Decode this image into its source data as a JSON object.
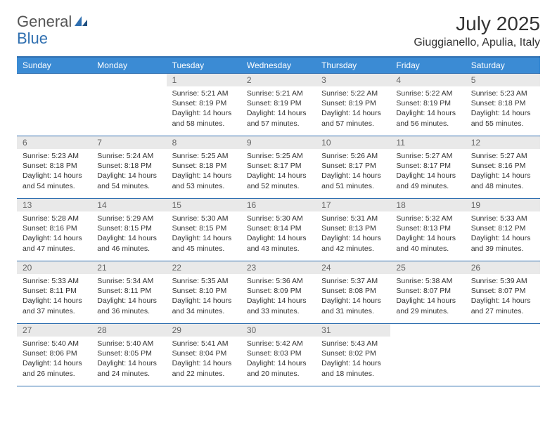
{
  "logo": {
    "text1": "General",
    "text2": "Blue"
  },
  "title": "July 2025",
  "location": "Giuggianello, Apulia, Italy",
  "colors": {
    "header_bg": "#3b8bd4",
    "header_text": "#ffffff",
    "border": "#2f6fb0",
    "daynum_bg": "#e9e9e9",
    "daynum_text": "#666666",
    "body_text": "#333333",
    "background": "#ffffff",
    "logo_gray": "#555555",
    "logo_blue": "#2f6fb0"
  },
  "day_headers": [
    "Sunday",
    "Monday",
    "Tuesday",
    "Wednesday",
    "Thursday",
    "Friday",
    "Saturday"
  ],
  "weeks": [
    [
      {
        "day": "",
        "sunrise": "",
        "sunset": "",
        "daylight": ""
      },
      {
        "day": "",
        "sunrise": "",
        "sunset": "",
        "daylight": ""
      },
      {
        "day": "1",
        "sunrise": "Sunrise: 5:21 AM",
        "sunset": "Sunset: 8:19 PM",
        "daylight": "Daylight: 14 hours and 58 minutes."
      },
      {
        "day": "2",
        "sunrise": "Sunrise: 5:21 AM",
        "sunset": "Sunset: 8:19 PM",
        "daylight": "Daylight: 14 hours and 57 minutes."
      },
      {
        "day": "3",
        "sunrise": "Sunrise: 5:22 AM",
        "sunset": "Sunset: 8:19 PM",
        "daylight": "Daylight: 14 hours and 57 minutes."
      },
      {
        "day": "4",
        "sunrise": "Sunrise: 5:22 AM",
        "sunset": "Sunset: 8:19 PM",
        "daylight": "Daylight: 14 hours and 56 minutes."
      },
      {
        "day": "5",
        "sunrise": "Sunrise: 5:23 AM",
        "sunset": "Sunset: 8:18 PM",
        "daylight": "Daylight: 14 hours and 55 minutes."
      }
    ],
    [
      {
        "day": "6",
        "sunrise": "Sunrise: 5:23 AM",
        "sunset": "Sunset: 8:18 PM",
        "daylight": "Daylight: 14 hours and 54 minutes."
      },
      {
        "day": "7",
        "sunrise": "Sunrise: 5:24 AM",
        "sunset": "Sunset: 8:18 PM",
        "daylight": "Daylight: 14 hours and 54 minutes."
      },
      {
        "day": "8",
        "sunrise": "Sunrise: 5:25 AM",
        "sunset": "Sunset: 8:18 PM",
        "daylight": "Daylight: 14 hours and 53 minutes."
      },
      {
        "day": "9",
        "sunrise": "Sunrise: 5:25 AM",
        "sunset": "Sunset: 8:17 PM",
        "daylight": "Daylight: 14 hours and 52 minutes."
      },
      {
        "day": "10",
        "sunrise": "Sunrise: 5:26 AM",
        "sunset": "Sunset: 8:17 PM",
        "daylight": "Daylight: 14 hours and 51 minutes."
      },
      {
        "day": "11",
        "sunrise": "Sunrise: 5:27 AM",
        "sunset": "Sunset: 8:17 PM",
        "daylight": "Daylight: 14 hours and 49 minutes."
      },
      {
        "day": "12",
        "sunrise": "Sunrise: 5:27 AM",
        "sunset": "Sunset: 8:16 PM",
        "daylight": "Daylight: 14 hours and 48 minutes."
      }
    ],
    [
      {
        "day": "13",
        "sunrise": "Sunrise: 5:28 AM",
        "sunset": "Sunset: 8:16 PM",
        "daylight": "Daylight: 14 hours and 47 minutes."
      },
      {
        "day": "14",
        "sunrise": "Sunrise: 5:29 AM",
        "sunset": "Sunset: 8:15 PM",
        "daylight": "Daylight: 14 hours and 46 minutes."
      },
      {
        "day": "15",
        "sunrise": "Sunrise: 5:30 AM",
        "sunset": "Sunset: 8:15 PM",
        "daylight": "Daylight: 14 hours and 45 minutes."
      },
      {
        "day": "16",
        "sunrise": "Sunrise: 5:30 AM",
        "sunset": "Sunset: 8:14 PM",
        "daylight": "Daylight: 14 hours and 43 minutes."
      },
      {
        "day": "17",
        "sunrise": "Sunrise: 5:31 AM",
        "sunset": "Sunset: 8:13 PM",
        "daylight": "Daylight: 14 hours and 42 minutes."
      },
      {
        "day": "18",
        "sunrise": "Sunrise: 5:32 AM",
        "sunset": "Sunset: 8:13 PM",
        "daylight": "Daylight: 14 hours and 40 minutes."
      },
      {
        "day": "19",
        "sunrise": "Sunrise: 5:33 AM",
        "sunset": "Sunset: 8:12 PM",
        "daylight": "Daylight: 14 hours and 39 minutes."
      }
    ],
    [
      {
        "day": "20",
        "sunrise": "Sunrise: 5:33 AM",
        "sunset": "Sunset: 8:11 PM",
        "daylight": "Daylight: 14 hours and 37 minutes."
      },
      {
        "day": "21",
        "sunrise": "Sunrise: 5:34 AM",
        "sunset": "Sunset: 8:11 PM",
        "daylight": "Daylight: 14 hours and 36 minutes."
      },
      {
        "day": "22",
        "sunrise": "Sunrise: 5:35 AM",
        "sunset": "Sunset: 8:10 PM",
        "daylight": "Daylight: 14 hours and 34 minutes."
      },
      {
        "day": "23",
        "sunrise": "Sunrise: 5:36 AM",
        "sunset": "Sunset: 8:09 PM",
        "daylight": "Daylight: 14 hours and 33 minutes."
      },
      {
        "day": "24",
        "sunrise": "Sunrise: 5:37 AM",
        "sunset": "Sunset: 8:08 PM",
        "daylight": "Daylight: 14 hours and 31 minutes."
      },
      {
        "day": "25",
        "sunrise": "Sunrise: 5:38 AM",
        "sunset": "Sunset: 8:07 PM",
        "daylight": "Daylight: 14 hours and 29 minutes."
      },
      {
        "day": "26",
        "sunrise": "Sunrise: 5:39 AM",
        "sunset": "Sunset: 8:07 PM",
        "daylight": "Daylight: 14 hours and 27 minutes."
      }
    ],
    [
      {
        "day": "27",
        "sunrise": "Sunrise: 5:40 AM",
        "sunset": "Sunset: 8:06 PM",
        "daylight": "Daylight: 14 hours and 26 minutes."
      },
      {
        "day": "28",
        "sunrise": "Sunrise: 5:40 AM",
        "sunset": "Sunset: 8:05 PM",
        "daylight": "Daylight: 14 hours and 24 minutes."
      },
      {
        "day": "29",
        "sunrise": "Sunrise: 5:41 AM",
        "sunset": "Sunset: 8:04 PM",
        "daylight": "Daylight: 14 hours and 22 minutes."
      },
      {
        "day": "30",
        "sunrise": "Sunrise: 5:42 AM",
        "sunset": "Sunset: 8:03 PM",
        "daylight": "Daylight: 14 hours and 20 minutes."
      },
      {
        "day": "31",
        "sunrise": "Sunrise: 5:43 AM",
        "sunset": "Sunset: 8:02 PM",
        "daylight": "Daylight: 14 hours and 18 minutes."
      },
      {
        "day": "",
        "sunrise": "",
        "sunset": "",
        "daylight": ""
      },
      {
        "day": "",
        "sunrise": "",
        "sunset": "",
        "daylight": ""
      }
    ]
  ]
}
